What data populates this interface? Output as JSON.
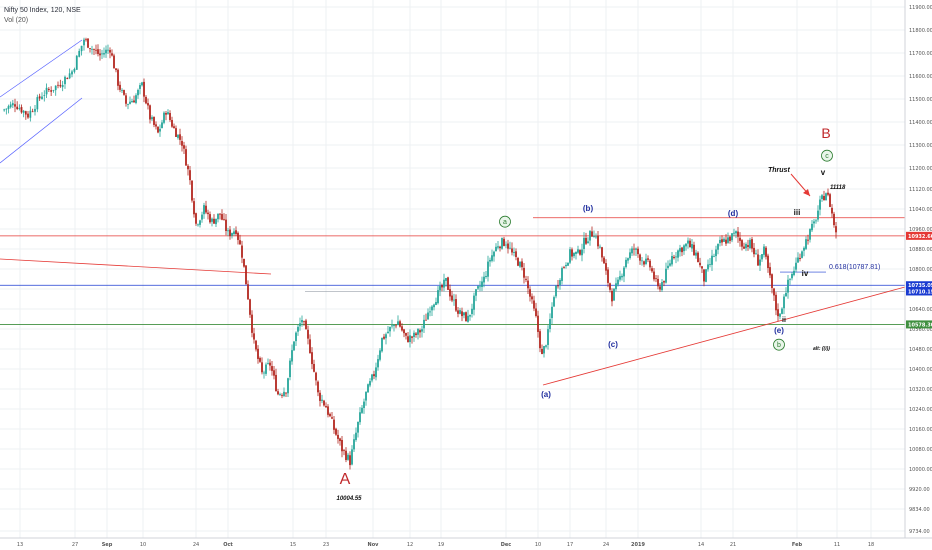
{
  "header": {
    "title": "Nifty 50 Index, 120, NSE",
    "volume_label": "Vol (20)"
  },
  "colors": {
    "up": "#26a69a",
    "down": "#b3261e",
    "trendline": "#e53935",
    "blue_line": "#1a3bd1",
    "green_line": "#3f8f3f",
    "grid": "#eef0f3",
    "channel": "#5560ff",
    "wave_blue": "#1f2d9e",
    "wave_red": "#c0282b",
    "wave_green": "#2e7d32"
  },
  "chart_data": {
    "type": "candlestick",
    "title": "Nifty 50 Index, 120, NSE",
    "ylim": [
      9734,
      11930
    ],
    "y_ticks": [
      "11900.00",
      "11800.00",
      "11700.00",
      "11600.00",
      "11500.00",
      "11400.00",
      "11300.00",
      "11200.00",
      "11120.00",
      "11040.00",
      "10960.00",
      "10880.00",
      "10800.00",
      "10720.00",
      "10640.00",
      "10560.00",
      "10480.00",
      "10400.00",
      "10320.00",
      "10240.00",
      "10160.00",
      "10080.00",
      "10000.00",
      "9920.00",
      "9834.00",
      "9734.00"
    ],
    "y_tick_values": [
      11900,
      11800,
      11700,
      11600,
      11500,
      11400,
      11300,
      11200,
      11120,
      11040,
      10960,
      10880,
      10800,
      10720,
      10640,
      10560,
      10480,
      10400,
      10320,
      10240,
      10160,
      10080,
      10000,
      9920,
      9834,
      9734
    ],
    "x_ticks": [
      "13",
      "27",
      "Sep",
      "10",
      "24",
      "Oct",
      "15",
      "23",
      "Nov",
      "12",
      "19",
      "Dec",
      "10",
      "17",
      "24",
      "2019",
      "14",
      "21",
      "Feb",
      "11",
      "18"
    ],
    "x_tick_values": [
      20,
      75,
      107,
      143,
      196,
      228,
      293,
      326,
      373,
      410,
      441,
      506,
      538,
      570,
      606,
      638,
      701,
      733,
      797,
      837,
      871
    ],
    "price_labels": [
      {
        "value": 10932.6,
        "text": "10932.60",
        "color": "#e53935"
      },
      {
        "value": 10735.05,
        "text": "10735.05",
        "color": "#1a3bd1"
      },
      {
        "value": 10710.15,
        "text": "10710.15",
        "color": "#1a3bd1"
      },
      {
        "value": 10578.3,
        "text": "10578.30",
        "color": "#3f8f3f"
      }
    ],
    "waves": [
      {
        "text": "A",
        "style": "red-big"
      },
      {
        "text": "10004.55",
        "style": "price"
      },
      {
        "text": "a",
        "style": "green-circle"
      },
      {
        "text": "(b)",
        "style": "blue"
      },
      {
        "text": "(a)",
        "style": "blue"
      },
      {
        "text": "(c)",
        "style": "blue"
      },
      {
        "text": "(d)",
        "style": "blue"
      },
      {
        "text": "(e)",
        "style": "blue"
      },
      {
        "text": "b",
        "style": "green-circle"
      },
      {
        "text": "iii",
        "style": "black"
      },
      {
        "text": "iv",
        "style": "black"
      },
      {
        "text": "ii",
        "style": "black"
      },
      {
        "text": "v",
        "style": "black"
      },
      {
        "text": "c",
        "style": "green-circle"
      },
      {
        "text": "B",
        "style": "red-big"
      },
      {
        "text": "Thrust",
        "style": "italic"
      },
      {
        "text": "11118",
        "style": "price"
      },
      {
        "text": "alt: ((i))",
        "style": "price"
      },
      {
        "text": "0.618(10787.81)",
        "style": "fib"
      }
    ],
    "horizontal_lines": [
      {
        "value": 10932.6,
        "name": "resistance",
        "color": "#e53935"
      },
      {
        "value": 11005,
        "name": "(b)-(d) line",
        "color": "#e53935"
      },
      {
        "value": 10735.05,
        "name": "blue support",
        "color": "#1a3bd1"
      },
      {
        "value": 10578.3,
        "name": "green support",
        "color": "#3f8f3f"
      }
    ],
    "path": [
      [
        2,
        11450
      ],
      [
        15,
        11480
      ],
      [
        28,
        11430
      ],
      [
        42,
        11520
      ],
      [
        58,
        11560
      ],
      [
        72,
        11620
      ],
      [
        84,
        11760
      ],
      [
        92,
        11720
      ],
      [
        100,
        11690
      ],
      [
        110,
        11720
      ],
      [
        118,
        11570
      ],
      [
        126,
        11480
      ],
      [
        134,
        11500
      ],
      [
        142,
        11560
      ],
      [
        150,
        11420
      ],
      [
        158,
        11350
      ],
      [
        166,
        11450
      ],
      [
        174,
        11370
      ],
      [
        182,
        11310
      ],
      [
        190,
        11150
      ],
      [
        196,
        10980
      ],
      [
        204,
        11040
      ],
      [
        212,
        10990
      ],
      [
        220,
        11020
      ],
      [
        228,
        10940
      ],
      [
        236,
        10960
      ],
      [
        242,
        10860
      ],
      [
        248,
        10690
      ],
      [
        254,
        10500
      ],
      [
        262,
        10380
      ],
      [
        270,
        10420
      ],
      [
        278,
        10300
      ],
      [
        286,
        10320
      ],
      [
        294,
        10520
      ],
      [
        302,
        10600
      ],
      [
        310,
        10480
      ],
      [
        318,
        10300
      ],
      [
        326,
        10250
      ],
      [
        334,
        10160
      ],
      [
        342,
        10080
      ],
      [
        350,
        10030
      ],
      [
        358,
        10180
      ],
      [
        366,
        10300
      ],
      [
        374,
        10380
      ],
      [
        382,
        10520
      ],
      [
        390,
        10560
      ],
      [
        398,
        10590
      ],
      [
        406,
        10520
      ],
      [
        414,
        10530
      ],
      [
        422,
        10560
      ],
      [
        430,
        10650
      ],
      [
        438,
        10700
      ],
      [
        446,
        10750
      ],
      [
        452,
        10680
      ],
      [
        460,
        10620
      ],
      [
        468,
        10600
      ],
      [
        476,
        10700
      ],
      [
        484,
        10760
      ],
      [
        490,
        10840
      ],
      [
        498,
        10900
      ],
      [
        506,
        10910
      ],
      [
        512,
        10860
      ],
      [
        518,
        10830
      ],
      [
        524,
        10780
      ],
      [
        530,
        10690
      ],
      [
        536,
        10600
      ],
      [
        542,
        10450
      ],
      [
        548,
        10540
      ],
      [
        554,
        10700
      ],
      [
        562,
        10800
      ],
      [
        570,
        10860
      ],
      [
        578,
        10860
      ],
      [
        586,
        10920
      ],
      [
        594,
        10950
      ],
      [
        600,
        10880
      ],
      [
        606,
        10780
      ],
      [
        612,
        10690
      ],
      [
        618,
        10740
      ],
      [
        626,
        10840
      ],
      [
        634,
        10880
      ],
      [
        642,
        10840
      ],
      [
        650,
        10810
      ],
      [
        658,
        10720
      ],
      [
        664,
        10760
      ],
      [
        672,
        10850
      ],
      [
        680,
        10880
      ],
      [
        688,
        10900
      ],
      [
        696,
        10860
      ],
      [
        704,
        10760
      ],
      [
        712,
        10840
      ],
      [
        720,
        10900
      ],
      [
        728,
        10920
      ],
      [
        736,
        10940
      ],
      [
        742,
        10900
      ],
      [
        750,
        10900
      ],
      [
        758,
        10830
      ],
      [
        764,
        10870
      ],
      [
        770,
        10760
      ],
      [
        776,
        10640
      ],
      [
        780,
        10610
      ],
      [
        784,
        10700
      ],
      [
        790,
        10760
      ],
      [
        796,
        10820
      ],
      [
        802,
        10880
      ],
      [
        808,
        10930
      ],
      [
        814,
        10980
      ],
      [
        820,
        11060
      ],
      [
        826,
        11110
      ],
      [
        830,
        11060
      ],
      [
        836,
        10940
      ]
    ]
  }
}
